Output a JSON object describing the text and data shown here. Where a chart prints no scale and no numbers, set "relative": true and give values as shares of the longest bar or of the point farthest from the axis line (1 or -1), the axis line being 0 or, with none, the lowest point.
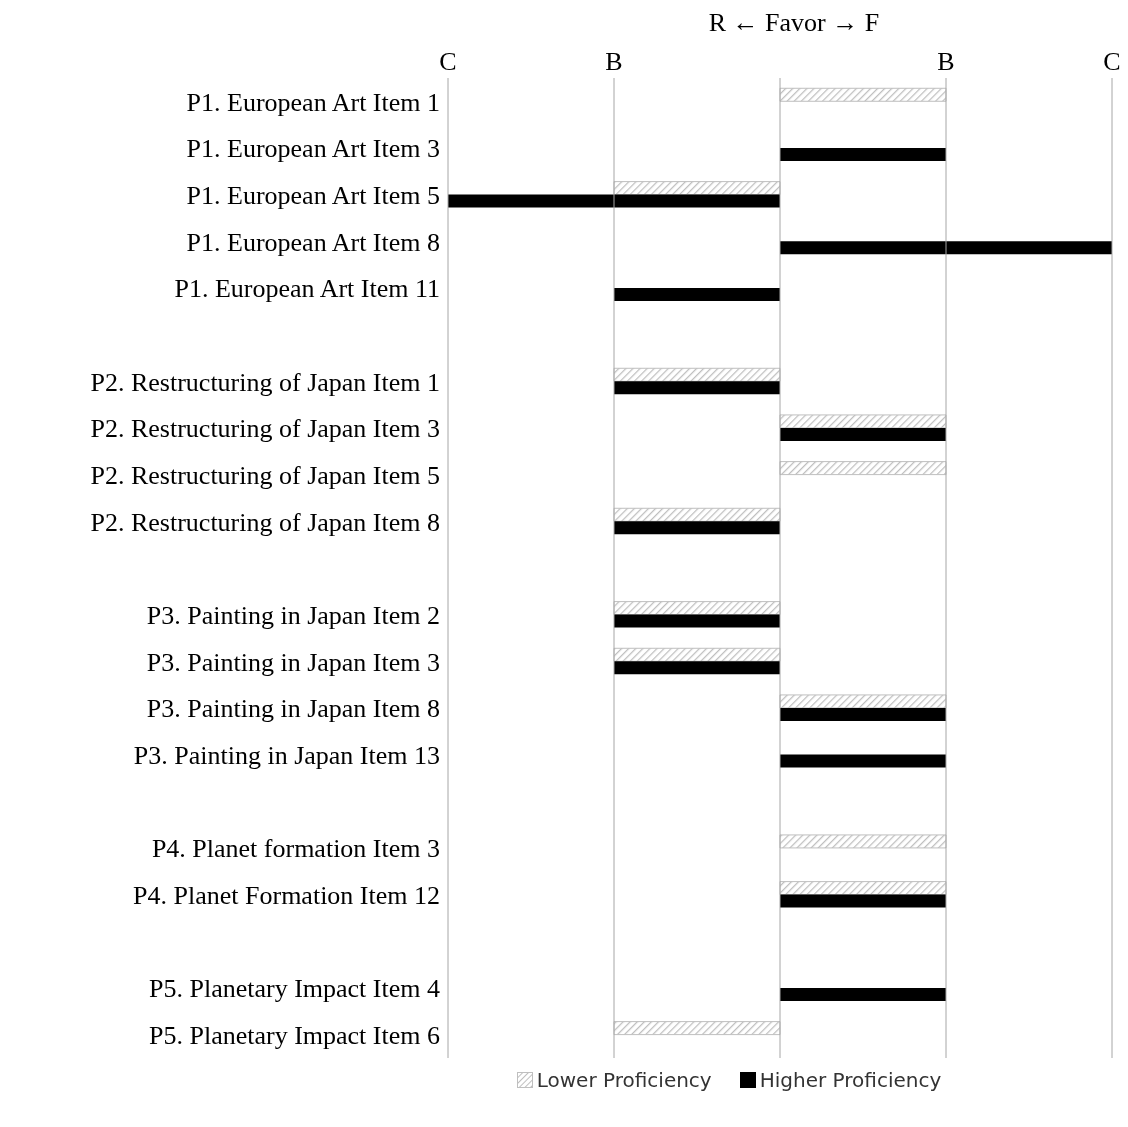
{
  "chart_data": {
    "type": "bar",
    "orientation": "horizontal",
    "title": "R ← Favor → F",
    "categories": [
      "P1. European Art Item 1",
      "P1. European Art Item 3",
      "P1. European Art Item 5",
      "P1. European Art Item 8",
      "P1. European Art Item 11",
      null,
      "P2. Restructuring of Japan Item 1",
      "P2. Restructuring of Japan Item 3",
      "P2. Restructuring of Japan Item 5",
      "P2. Restructuring of Japan Item 8",
      null,
      "P3. Painting in Japan Item 2",
      "P3. Painting in Japan Item 3",
      "P3. Painting in Japan Item 8",
      "P3. Painting in Japan Item 13",
      null,
      "P4. Planet formation Item 3",
      "P4. Planet Formation Item 12",
      null,
      "P5. Planetary Impact Item 4",
      "P5. Planetary Impact Item 6"
    ],
    "series": [
      {
        "name": "Lower Proficiency",
        "color": "#bfbfbf",
        "values": [
          0.5,
          null,
          -0.5,
          null,
          null,
          null,
          -0.5,
          0.5,
          0.5,
          -0.5,
          null,
          -0.5,
          -0.5,
          0.5,
          null,
          null,
          0.5,
          0.5,
          null,
          null,
          -0.5
        ]
      },
      {
        "name": "Higher Proficiency",
        "color": "#000000",
        "values": [
          null,
          0.5,
          -1,
          1,
          -0.5,
          null,
          -0.5,
          0.5,
          null,
          -0.5,
          null,
          -0.5,
          -0.5,
          0.5,
          0.5,
          null,
          null,
          0.5,
          null,
          0.5,
          null
        ]
      }
    ],
    "relative": true,
    "annotations": [
      "C",
      "B",
      "B",
      "C"
    ],
    "grid": "x",
    "legend": "bottom"
  }
}
